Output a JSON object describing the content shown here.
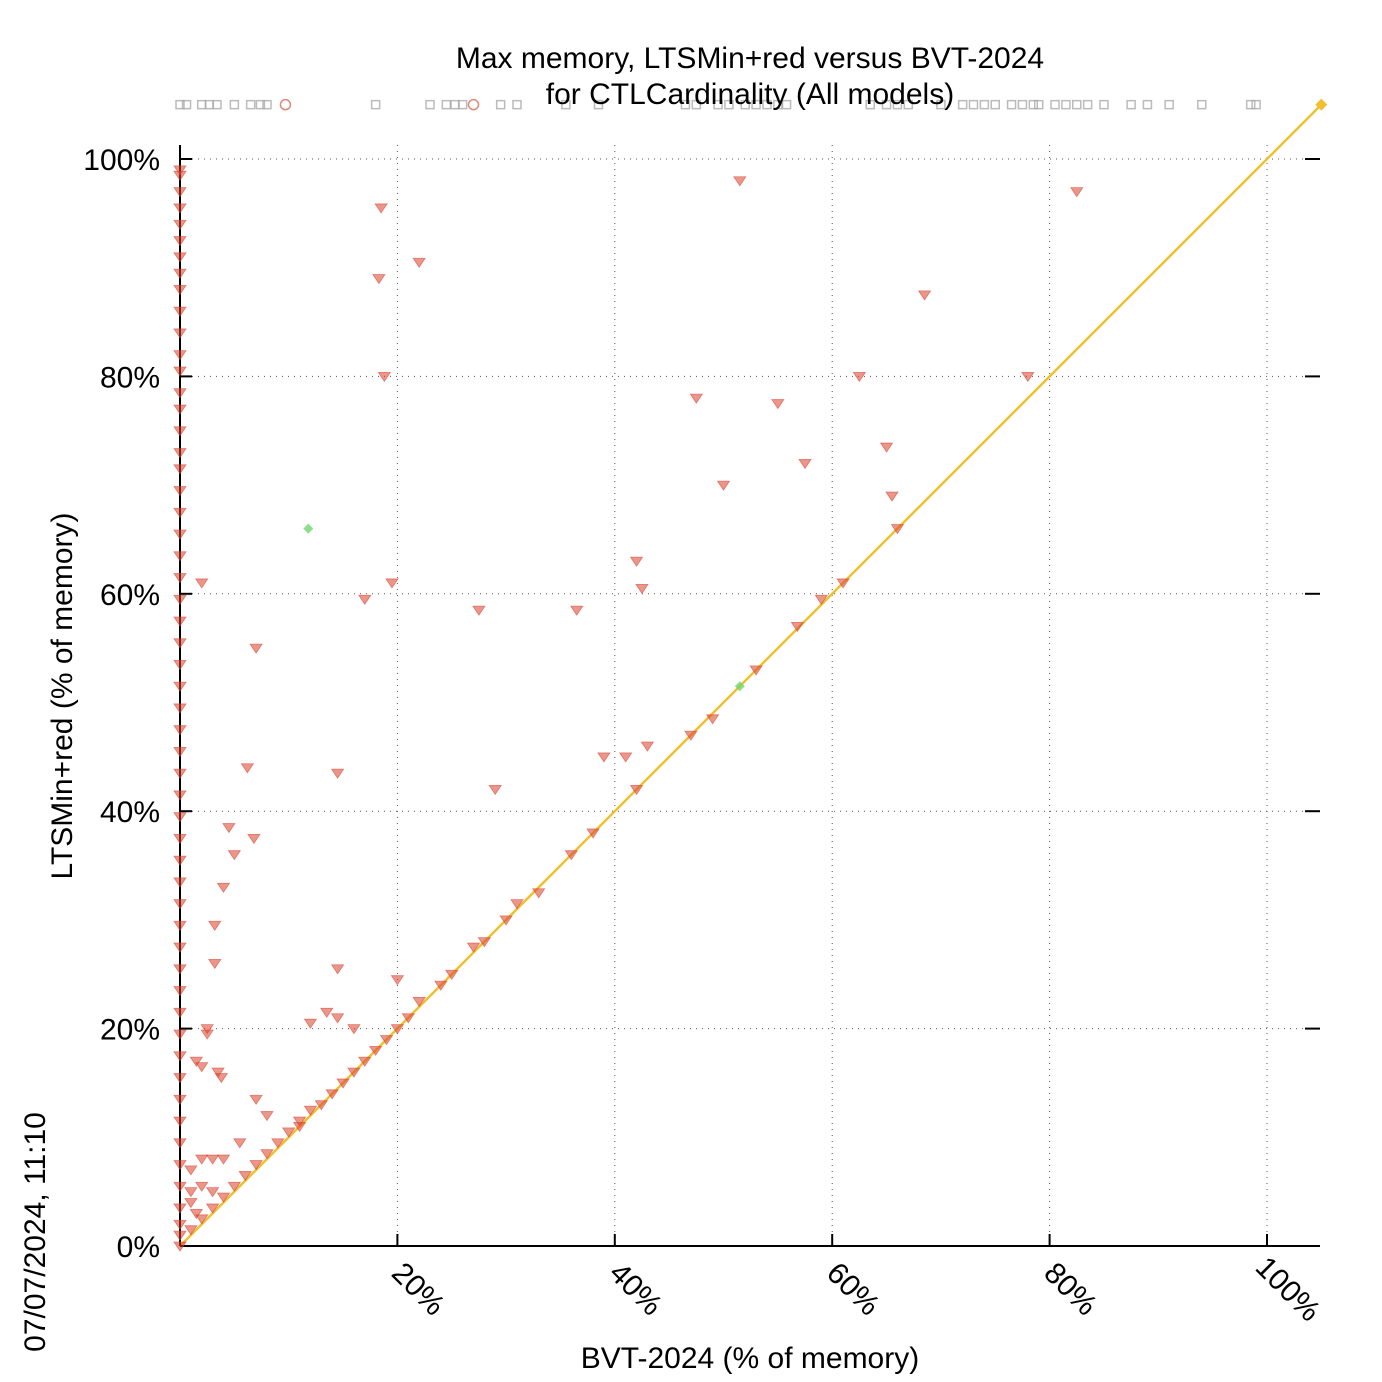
{
  "chart_data": {
    "type": "scatter",
    "title": "Max memory, LTSMin+red versus BVT-2024",
    "subtitle": "for CTLCardinality (All models)",
    "xlabel": "BVT-2024 (% of memory)",
    "ylabel": "LTSMin+red (% of memory)",
    "timestamp": "07/07/2024, 11:10",
    "xlim": [
      0,
      105
    ],
    "ylim": [
      0,
      105
    ],
    "x_ticks": [
      {
        "value": 20,
        "label": "20%"
      },
      {
        "value": 40,
        "label": "40%"
      },
      {
        "value": 60,
        "label": "60%"
      },
      {
        "value": 80,
        "label": "80%"
      },
      {
        "value": 100,
        "label": "100%"
      }
    ],
    "y_ticks": [
      {
        "value": 0,
        "label": "0%"
      },
      {
        "value": 20,
        "label": "20%"
      },
      {
        "value": 40,
        "label": "40%"
      },
      {
        "value": 60,
        "label": "60%"
      },
      {
        "value": 80,
        "label": "80%"
      },
      {
        "value": 100,
        "label": "100%"
      }
    ],
    "grid": true,
    "colors": {
      "triangle": "#d9402c",
      "diamond": "#6fd66a",
      "circle": "#d36a5a",
      "square": "#aaaaaa",
      "diagonal": "#f0c030"
    },
    "series": [
      {
        "marker": "triangle-down",
        "points": [
          [
            0,
            99
          ],
          [
            0,
            98.5
          ],
          [
            0,
            97
          ],
          [
            0,
            95.5
          ],
          [
            0,
            94
          ],
          [
            0,
            92.5
          ],
          [
            0,
            91
          ],
          [
            0,
            89.5
          ],
          [
            0,
            88
          ],
          [
            0,
            86
          ],
          [
            0,
            84
          ],
          [
            0,
            82
          ],
          [
            0,
            80.5
          ],
          [
            0,
            78.5
          ],
          [
            0,
            77
          ],
          [
            0,
            75
          ],
          [
            0,
            73
          ],
          [
            0,
            71.5
          ],
          [
            0,
            69.5
          ],
          [
            0,
            67.5
          ],
          [
            0,
            65.5
          ],
          [
            0,
            63.5
          ],
          [
            0,
            61.5
          ],
          [
            0,
            59.5
          ],
          [
            0,
            57.5
          ],
          [
            0,
            55.5
          ],
          [
            0,
            53.5
          ],
          [
            0,
            51.5
          ],
          [
            0,
            49.5
          ],
          [
            0,
            47.5
          ],
          [
            0,
            45.5
          ],
          [
            0,
            43.5
          ],
          [
            0,
            41.5
          ],
          [
            0,
            39.5
          ],
          [
            0,
            37.5
          ],
          [
            0,
            35.5
          ],
          [
            0,
            33.5
          ],
          [
            0,
            31.5
          ],
          [
            0,
            29.5
          ],
          [
            0,
            27.5
          ],
          [
            0,
            25.5
          ],
          [
            0,
            23.5
          ],
          [
            0,
            21.5
          ],
          [
            0,
            19.5
          ],
          [
            0,
            17.5
          ],
          [
            0,
            15.5
          ],
          [
            0,
            13.5
          ],
          [
            0,
            11.5
          ],
          [
            0,
            9.5
          ],
          [
            0,
            7.5
          ],
          [
            0,
            5.5
          ],
          [
            0,
            3.5
          ],
          [
            0,
            2
          ],
          [
            0,
            1
          ],
          [
            0,
            0
          ],
          [
            2,
            61
          ],
          [
            7,
            55
          ],
          [
            6.2,
            44
          ],
          [
            6.8,
            37.5
          ],
          [
            4.5,
            38.5
          ],
          [
            5,
            36
          ],
          [
            4,
            33
          ],
          [
            3.2,
            29.5
          ],
          [
            3.2,
            26
          ],
          [
            2.5,
            20
          ],
          [
            2.5,
            19.5
          ],
          [
            1.5,
            17
          ],
          [
            2,
            16.5
          ],
          [
            3.5,
            16
          ],
          [
            3.8,
            15.5
          ],
          [
            7,
            13.5
          ],
          [
            5.5,
            9.5
          ],
          [
            3,
            8
          ],
          [
            2,
            8
          ],
          [
            4,
            8
          ],
          [
            1,
            7
          ],
          [
            1,
            5
          ],
          [
            2,
            5.5
          ],
          [
            1,
            4
          ],
          [
            1.5,
            3
          ],
          [
            3,
            5
          ],
          [
            8,
            12
          ],
          [
            11,
            11
          ],
          [
            18.5,
            95.5
          ],
          [
            22,
            90.5
          ],
          [
            18.3,
            89
          ],
          [
            18.8,
            80
          ],
          [
            19.5,
            61
          ],
          [
            17,
            59.5
          ],
          [
            27.5,
            58.5
          ],
          [
            36.5,
            58.5
          ],
          [
            14.5,
            43.5
          ],
          [
            29,
            42
          ],
          [
            14.5,
            25.5
          ],
          [
            13.5,
            21.5
          ],
          [
            14.5,
            21
          ],
          [
            16,
            20
          ],
          [
            12,
            20.5
          ],
          [
            20,
            24.5
          ],
          [
            51.5,
            98
          ],
          [
            82.5,
            97
          ],
          [
            68.5,
            87.5
          ],
          [
            47.5,
            78
          ],
          [
            55,
            77.5
          ],
          [
            62.5,
            80
          ],
          [
            78,
            80
          ],
          [
            57.5,
            72
          ],
          [
            65,
            73.5
          ],
          [
            50,
            70
          ],
          [
            65.5,
            69
          ],
          [
            42,
            63
          ],
          [
            42.5,
            60.5
          ],
          [
            39,
            45
          ],
          [
            41,
            45
          ],
          [
            43,
            46
          ],
          [
            66,
            66
          ],
          [
            61,
            61
          ],
          [
            59,
            59.5
          ],
          [
            56.8,
            57
          ],
          [
            53,
            53
          ],
          [
            49,
            48.5
          ],
          [
            47,
            47
          ],
          [
            42,
            42
          ],
          [
            38,
            38
          ],
          [
            36,
            36
          ],
          [
            33,
            32.5
          ],
          [
            31,
            31.5
          ],
          [
            30,
            30
          ],
          [
            28,
            28
          ],
          [
            27,
            27.5
          ],
          [
            25,
            25
          ],
          [
            24,
            24
          ],
          [
            22,
            22.5
          ],
          [
            21,
            21
          ],
          [
            20,
            20
          ],
          [
            19,
            19
          ],
          [
            18,
            18
          ],
          [
            17,
            17
          ],
          [
            16,
            16
          ],
          [
            15,
            15
          ],
          [
            14,
            14
          ],
          [
            13,
            13
          ],
          [
            12,
            12.5
          ],
          [
            11,
            11.5
          ],
          [
            10,
            10.5
          ],
          [
            9,
            9.5
          ],
          [
            8,
            8.5
          ],
          [
            7,
            7.5
          ],
          [
            6,
            6.5
          ],
          [
            5,
            5.5
          ],
          [
            4,
            4.5
          ],
          [
            3,
            3.5
          ],
          [
            2,
            2.5
          ],
          [
            1,
            1.5
          ]
        ]
      },
      {
        "marker": "diamond",
        "points": [
          [
            11.8,
            66
          ],
          [
            51.5,
            51.5
          ]
        ]
      },
      {
        "marker": "diamond-diagonal",
        "points": [
          [
            105,
            105
          ]
        ]
      },
      {
        "marker": "circle",
        "points": [
          [
            9.7,
            105
          ],
          [
            27,
            105
          ]
        ]
      },
      {
        "marker": "square",
        "points": [
          [
            0,
            105
          ],
          [
            0.6,
            105
          ],
          [
            2,
            105
          ],
          [
            2.7,
            105
          ],
          [
            3.4,
            105
          ],
          [
            5,
            105
          ],
          [
            6.5,
            105
          ],
          [
            7.4,
            105
          ],
          [
            8,
            105
          ],
          [
            18,
            105
          ],
          [
            23,
            105
          ],
          [
            24.5,
            105
          ],
          [
            25.3,
            105
          ],
          [
            26,
            105
          ],
          [
            29.5,
            105
          ],
          [
            31,
            105
          ],
          [
            35.5,
            105
          ],
          [
            38.5,
            105
          ],
          [
            46.5,
            105
          ],
          [
            47.5,
            105
          ],
          [
            49.5,
            105
          ],
          [
            50.5,
            105
          ],
          [
            52,
            105
          ],
          [
            53,
            105
          ],
          [
            54,
            105
          ],
          [
            55,
            105
          ],
          [
            55.8,
            105
          ],
          [
            63.5,
            105
          ],
          [
            65,
            105
          ],
          [
            66,
            105
          ],
          [
            67,
            105
          ],
          [
            70,
            105
          ],
          [
            72,
            105
          ],
          [
            73,
            105
          ],
          [
            74,
            105
          ],
          [
            75,
            105
          ],
          [
            76.5,
            105
          ],
          [
            77.5,
            105
          ],
          [
            78.5,
            105
          ],
          [
            79,
            105
          ],
          [
            80.5,
            105
          ],
          [
            81.5,
            105
          ],
          [
            82.5,
            105
          ],
          [
            83.5,
            105
          ],
          [
            85,
            105
          ],
          [
            87.5,
            105
          ],
          [
            89,
            105
          ],
          [
            91,
            105
          ],
          [
            94,
            105
          ],
          [
            98.5,
            105
          ],
          [
            99,
            105
          ]
        ]
      }
    ],
    "diagonal": [
      [
        0,
        0
      ],
      [
        105,
        105
      ]
    ]
  }
}
